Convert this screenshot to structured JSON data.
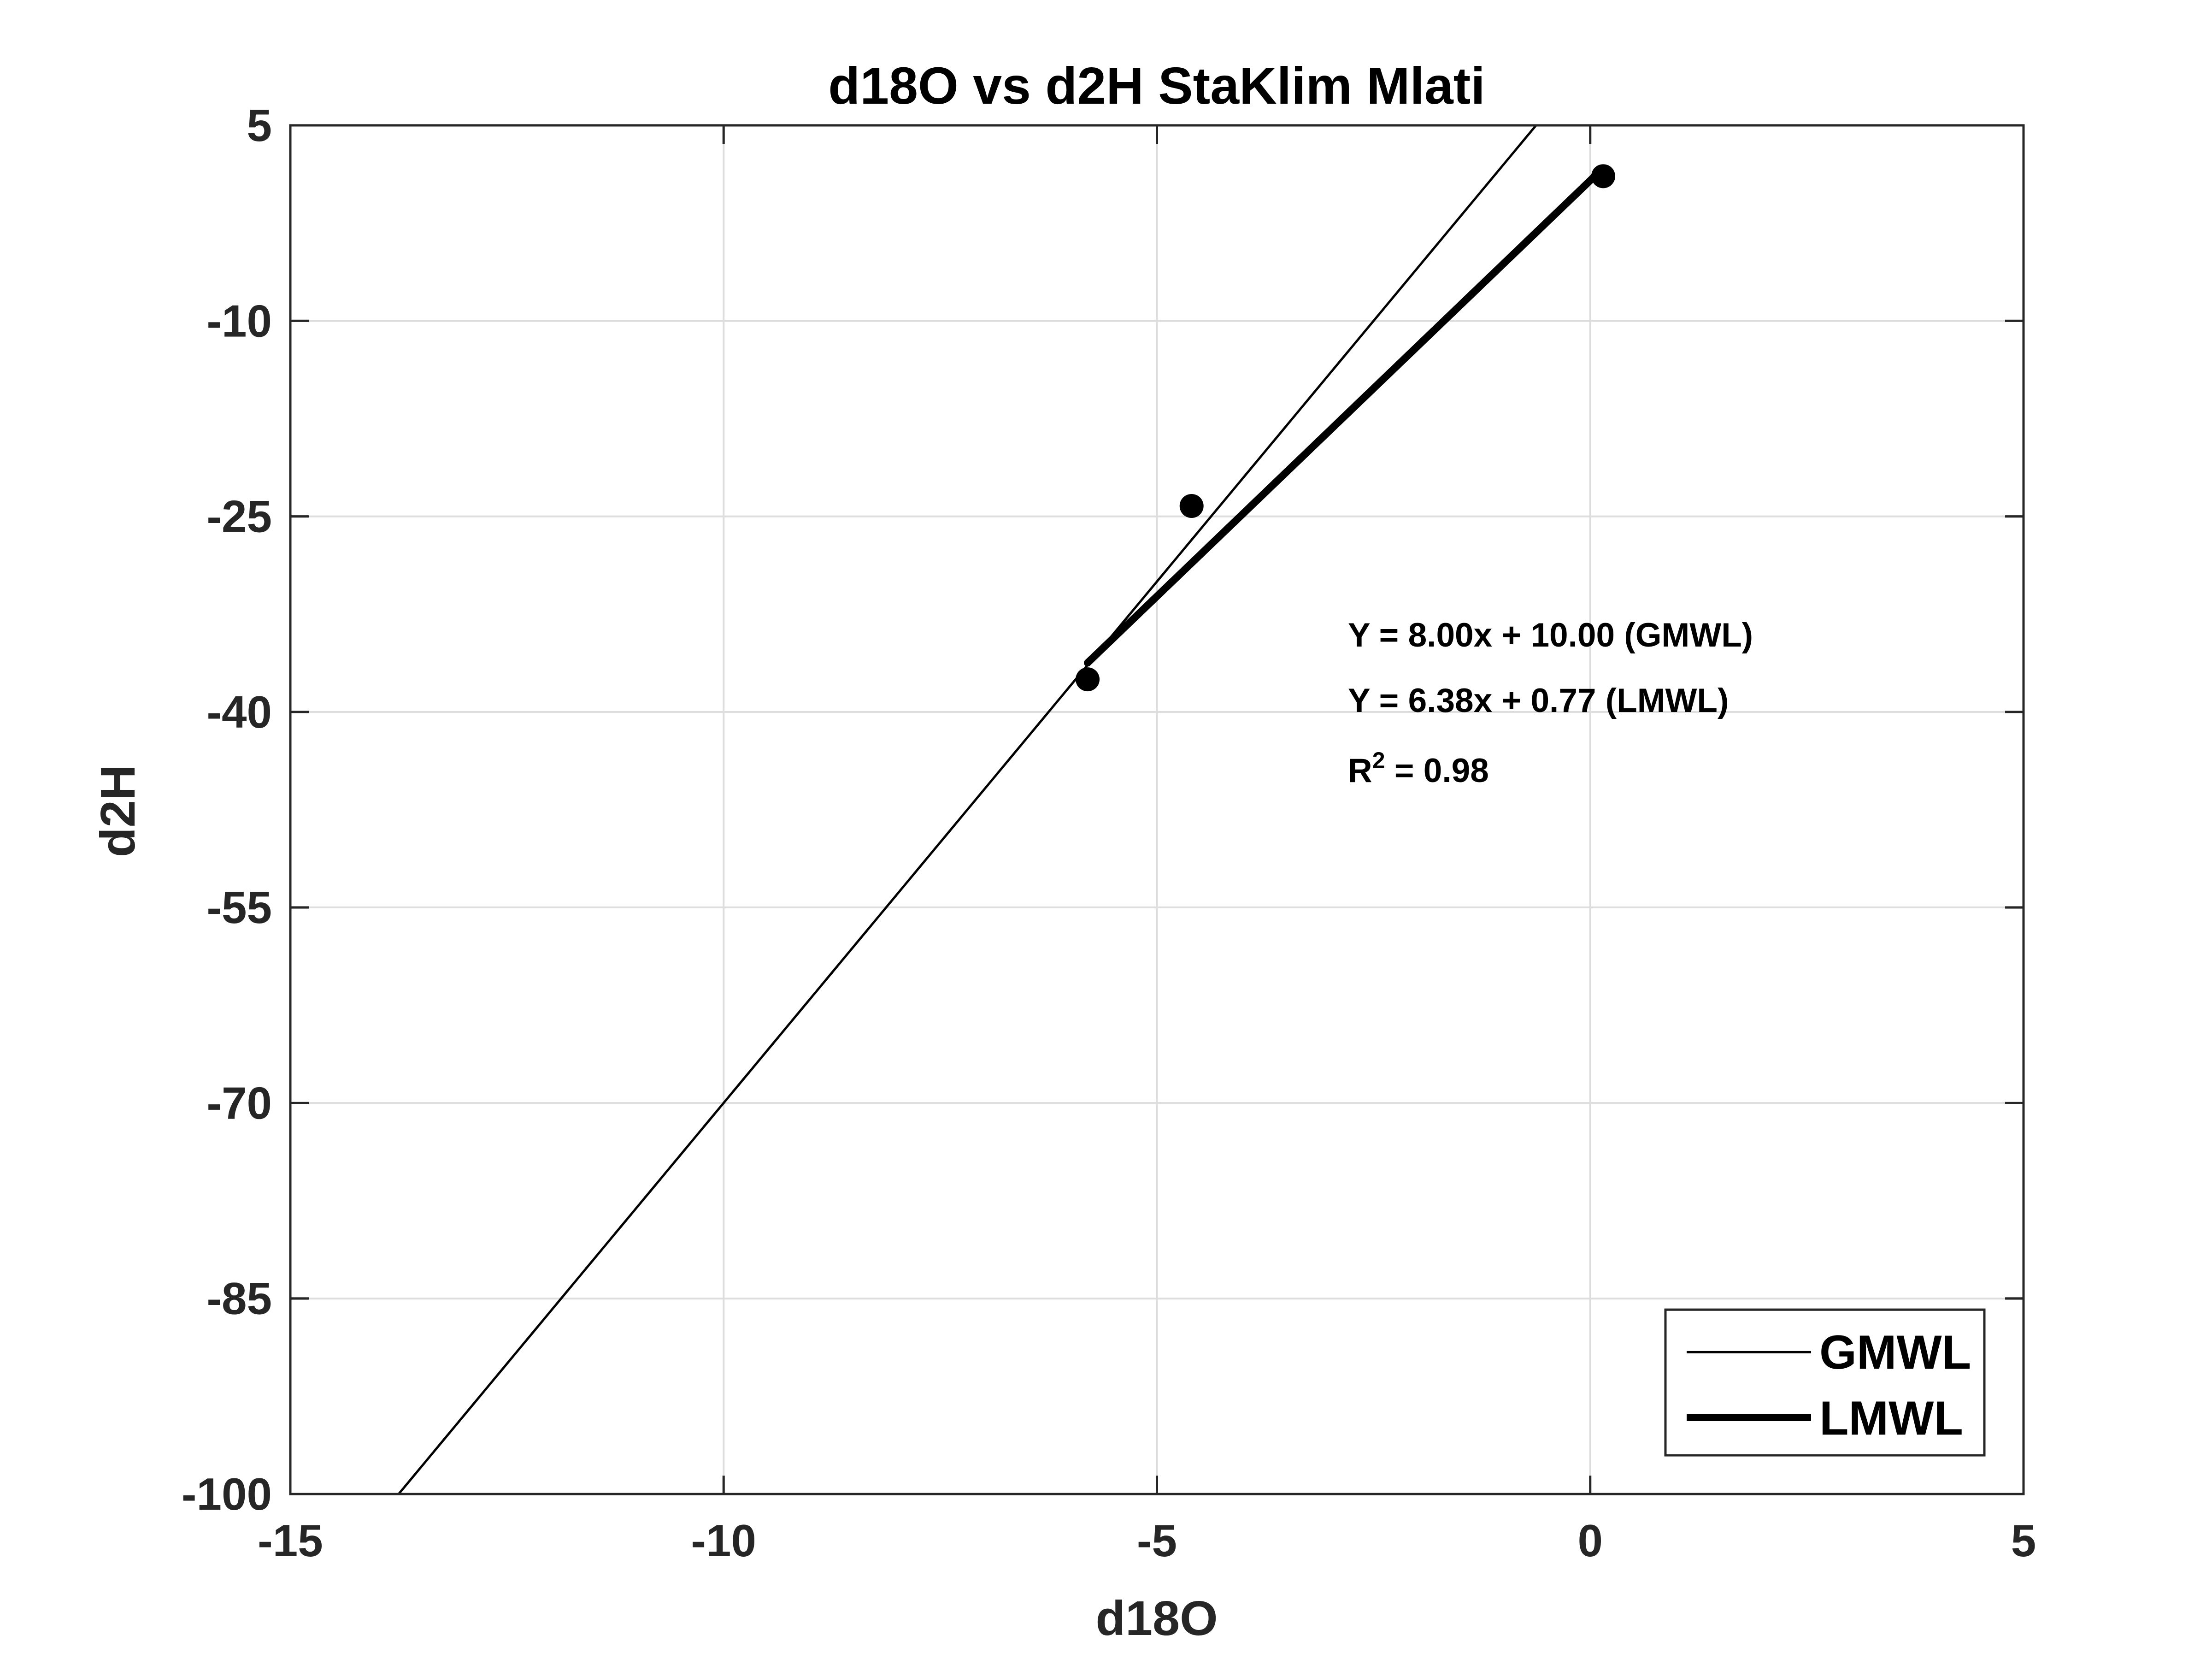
{
  "chart_data": {
    "type": "scatter",
    "title": "d18O vs d2H StaKlim Mlati",
    "xlabel": "d18O",
    "ylabel": "d2H",
    "xlim": [
      -15,
      5
    ],
    "ylim": [
      -100,
      5
    ],
    "xticks": [
      -15,
      -10,
      -5,
      0,
      5
    ],
    "yticks": [
      5,
      -10,
      -25,
      -40,
      -55,
      -70,
      -85,
      -100
    ],
    "grid": true,
    "points": [
      {
        "x": -5.8,
        "y": -37.5
      },
      {
        "x": -4.6,
        "y": -24.2
      },
      {
        "x": 0.15,
        "y": 1.1
      }
    ],
    "lines": [
      {
        "name": "GMWL",
        "slope": 8.0,
        "intercept": 10.0,
        "x_range": [
          -13.75,
          -0.625
        ],
        "color": "#000000",
        "weight": "thin"
      },
      {
        "name": "LMWL",
        "slope": 6.38,
        "intercept": 0.77,
        "x_range": [
          -5.8,
          0.15
        ],
        "color": "#000000",
        "weight": "thick"
      }
    ],
    "annotations": [
      "Y = 8.00x + 10.00 (GMWL)",
      "Y = 6.38x + 0.77 (LMWL)"
    ],
    "r2": {
      "label": "R",
      "superscript": "2",
      "value_text": " = 0.98"
    },
    "legend": {
      "position": "bottom-right",
      "entries": [
        "GMWL",
        "LMWL"
      ]
    }
  }
}
